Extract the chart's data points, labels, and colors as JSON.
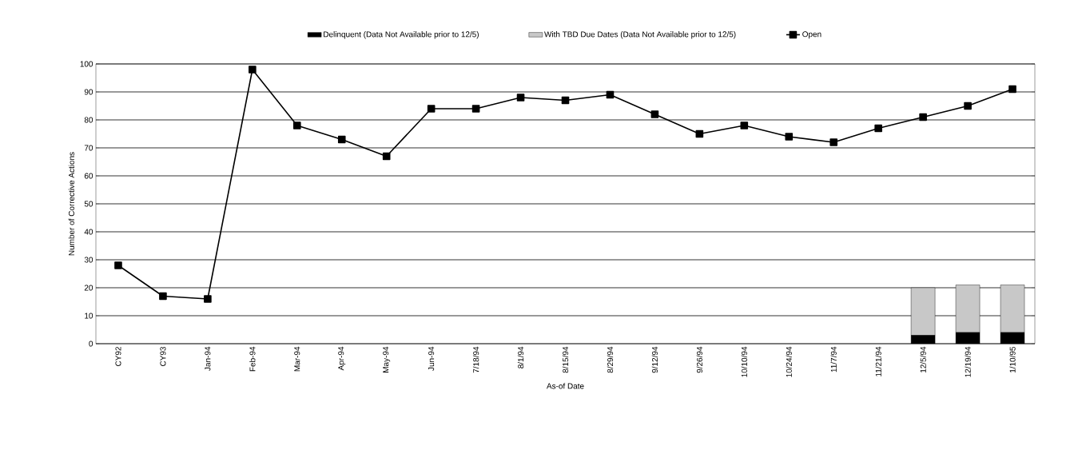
{
  "chart_data": {
    "type": "line",
    "xlabel": "As-of Date",
    "ylabel": "Number of Corrective Actions",
    "categories": [
      "CY92",
      "CY93",
      "Jan-94",
      "Feb-94",
      "Mar-94",
      "Apr-94",
      "May-94",
      "Jun-94",
      "7/18/94",
      "8/1/94",
      "8/15/94",
      "8/29/94",
      "9/12/94",
      "9/26/94",
      "10/10/94",
      "10/24/94",
      "11/7/94",
      "11/21/94",
      "12/5/94",
      "12/19/94",
      "1/10/95"
    ],
    "series": [
      {
        "name": "Delinquent (Data Not Available prior to 12/5)",
        "type": "bar",
        "color": "#000000",
        "values": [
          null,
          null,
          null,
          null,
          null,
          null,
          null,
          null,
          null,
          null,
          null,
          null,
          null,
          null,
          null,
          null,
          null,
          null,
          3,
          4,
          4
        ]
      },
      {
        "name": "With TBD Due Dates (Data Not Available prior to 12/5)",
        "type": "bar",
        "color": "#c8c8c8",
        "values": [
          null,
          null,
          null,
          null,
          null,
          null,
          null,
          null,
          null,
          null,
          null,
          null,
          null,
          null,
          null,
          null,
          null,
          null,
          17,
          17,
          17
        ]
      },
      {
        "name": "Open",
        "color": "#000000",
        "values": [
          28,
          17,
          16,
          98,
          78,
          73,
          67,
          84,
          84,
          88,
          87,
          89,
          82,
          75,
          78,
          74,
          72,
          77,
          81,
          85,
          91
        ]
      }
    ],
    "stacked": true,
    "ylim": [
      0,
      100
    ],
    "yticks": [
      0,
      10,
      20,
      30,
      40,
      50,
      60,
      70,
      80,
      90,
      100
    ],
    "grid": "y",
    "legend": "top",
    "marker": "square",
    "line_style": "solid"
  }
}
